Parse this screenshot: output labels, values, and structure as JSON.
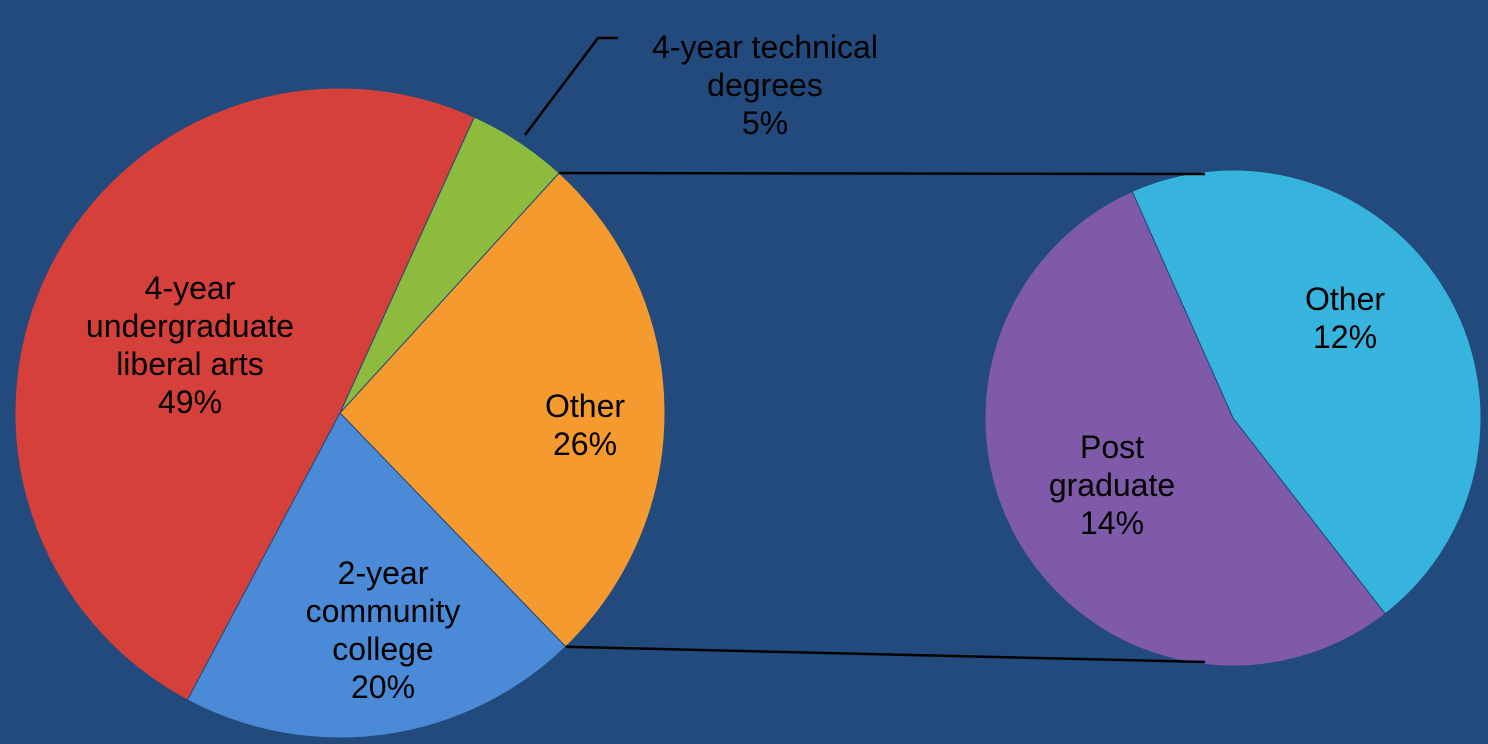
{
  "chart_data": [
    {
      "type": "pie",
      "categories": [
        "4-year undergraduate liberal arts",
        "4-year technical degrees",
        "Other",
        "2-year community college"
      ],
      "values": [
        49,
        5,
        26,
        20
      ],
      "value_labels": [
        "49%",
        "5%",
        "26%",
        "20%"
      ],
      "colors": [
        "#d6403b",
        "#8dbb3e",
        "#f49a2f",
        "#4a8ad6"
      ]
    },
    {
      "type": "pie",
      "categories": [
        "Other",
        "Post graduate"
      ],
      "values": [
        12,
        14
      ],
      "value_labels": [
        "12%",
        "14%"
      ],
      "colors": [
        "#36b4dd",
        "#7f5aa9"
      ]
    }
  ]
}
